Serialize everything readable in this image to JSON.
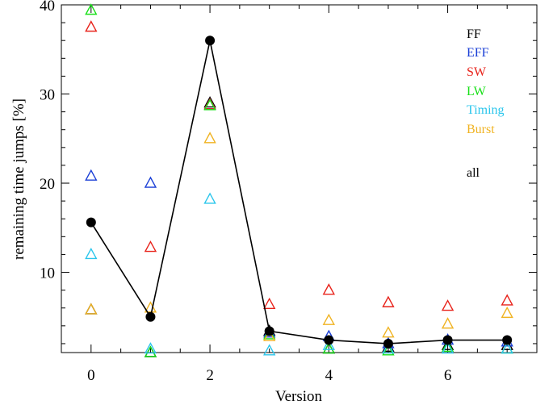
{
  "chart_data": {
    "type": "scatter",
    "title": "",
    "xlabel": "Version",
    "ylabel": "remaining time jumps [%]",
    "xlim": [
      -0.5,
      7.5
    ],
    "ylim": [
      1,
      40
    ],
    "x_ticks": [
      0,
      2,
      4,
      6
    ],
    "x_minor_step": 0.5,
    "y_ticks": [
      10,
      20,
      30,
      40
    ],
    "y_minor_step": 2,
    "grid": false,
    "legend_position": "top-right",
    "marker_style": "open-triangle",
    "series": [
      {
        "name": "FF",
        "color": "#000000",
        "marker": "triangle",
        "x": [
          0,
          1,
          2,
          3,
          4,
          5,
          6,
          7
        ],
        "y": [
          5.8,
          1.0,
          29.0,
          3.4,
          1.4,
          1.6,
          1.8,
          1.8
        ]
      },
      {
        "name": "EFF",
        "color": "#1a3fd6",
        "marker": "triangle",
        "x": [
          0,
          1,
          2,
          3,
          4,
          5,
          6,
          7
        ],
        "y": [
          20.8,
          20.0,
          28.8,
          3.2,
          2.8,
          2.0,
          2.4,
          2.2
        ]
      },
      {
        "name": "SW",
        "color": "#e8231b",
        "marker": "triangle",
        "x": [
          0,
          1,
          2,
          3,
          4,
          5,
          6,
          7
        ],
        "y": [
          37.5,
          12.8,
          28.8,
          6.4,
          8.0,
          6.6,
          6.2,
          6.8
        ]
      },
      {
        "name": "LW",
        "color": "#18e018",
        "marker": "triangle",
        "x": [
          0,
          1,
          2,
          3,
          4,
          5,
          6,
          7
        ],
        "y": [
          39.4,
          1.0,
          28.7,
          3.0,
          1.4,
          1.2,
          1.6,
          1.4
        ]
      },
      {
        "name": "Timing",
        "color": "#2bc6ec",
        "marker": "triangle",
        "x": [
          0,
          1,
          2,
          3,
          4,
          5,
          6,
          7
        ],
        "y": [
          12.0,
          1.4,
          18.2,
          1.2,
          1.8,
          1.4,
          1.4,
          1.4
        ]
      },
      {
        "name": "Burst",
        "color": "#f0b322",
        "marker": "triangle",
        "x": [
          0,
          1,
          2,
          3,
          4,
          5,
          6,
          7
        ],
        "y": [
          5.8,
          6.0,
          25.0,
          2.8,
          4.6,
          3.2,
          4.2,
          5.4
        ]
      },
      {
        "name": "all",
        "color": "#000000",
        "marker": "filled-circle",
        "line": true,
        "x": [
          0,
          1,
          2,
          3,
          4,
          5,
          6,
          7
        ],
        "y": [
          15.6,
          5.0,
          36.0,
          3.4,
          2.4,
          2.0,
          2.4,
          2.4
        ]
      }
    ]
  }
}
